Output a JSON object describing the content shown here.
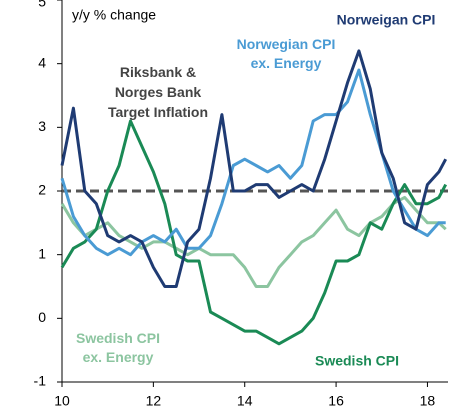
{
  "chart_data": {
    "type": "line",
    "ylabel": "y/y % change",
    "annotation": "Riksbank & Norges Bank Target Inflation",
    "target": 2,
    "x": [
      10,
      10.25,
      10.5,
      10.75,
      11,
      11.25,
      11.5,
      11.75,
      12,
      12.25,
      12.5,
      12.75,
      13,
      13.25,
      13.5,
      13.75,
      14,
      14.25,
      14.5,
      14.75,
      15,
      15.25,
      15.5,
      15.75,
      16,
      16.25,
      16.5,
      16.75,
      17,
      17.25,
      17.5,
      17.75,
      18,
      18.25,
      18.4
    ],
    "series": [
      {
        "name": "Norweigan CPI",
        "color": "#1f3b73",
        "values": [
          2.4,
          3.3,
          2.0,
          1.8,
          1.3,
          1.2,
          1.3,
          1.2,
          0.8,
          0.5,
          0.5,
          1.2,
          1.4,
          2.2,
          3.2,
          2.0,
          2.0,
          2.1,
          2.1,
          1.9,
          2.0,
          2.1,
          2.0,
          2.5,
          3.1,
          3.7,
          4.2,
          3.6,
          2.6,
          2.2,
          1.5,
          1.4,
          2.1,
          2.3,
          2.5
        ]
      },
      {
        "name": "Norwegian CPI ex. Energy",
        "color": "#4a9bd4",
        "values": [
          2.2,
          1.6,
          1.3,
          1.1,
          1.0,
          1.1,
          1.0,
          1.2,
          1.3,
          1.2,
          1.4,
          1.1,
          1.1,
          1.3,
          1.8,
          2.4,
          2.5,
          2.4,
          2.3,
          2.4,
          2.2,
          2.4,
          3.1,
          3.2,
          3.2,
          3.4,
          3.9,
          3.2,
          2.6,
          2.0,
          1.7,
          1.4,
          1.3,
          1.5,
          1.5
        ]
      },
      {
        "name": "Swedish CPI",
        "color": "#1a8a55",
        "values": [
          0.8,
          1.1,
          1.2,
          1.4,
          2.0,
          2.4,
          3.1,
          2.7,
          2.3,
          1.8,
          1.0,
          0.9,
          0.9,
          0.1,
          0.0,
          -0.1,
          -0.2,
          -0.2,
          -0.3,
          -0.4,
          -0.3,
          -0.2,
          0.0,
          0.4,
          0.9,
          0.9,
          1.0,
          1.5,
          1.4,
          1.8,
          2.1,
          1.8,
          1.8,
          1.9,
          2.1
        ]
      },
      {
        "name": "Swedish CPI ex. Energy",
        "color": "#8cc5a0",
        "values": [
          1.8,
          1.5,
          1.3,
          1.4,
          1.5,
          1.3,
          1.2,
          1.1,
          1.2,
          1.2,
          1.1,
          1.0,
          1.1,
          1.0,
          1.0,
          1.0,
          0.8,
          0.5,
          0.5,
          0.8,
          1.0,
          1.2,
          1.3,
          1.5,
          1.7,
          1.4,
          1.3,
          1.5,
          1.6,
          1.8,
          1.9,
          1.7,
          1.5,
          1.5,
          1.4
        ]
      }
    ],
    "xlim": [
      10,
      18.45
    ],
    "xticks": [
      10,
      12,
      14,
      16,
      18
    ],
    "ylim": [
      -1,
      5
    ],
    "yticks": [
      -1,
      0,
      1,
      2,
      3,
      4,
      5
    ]
  }
}
